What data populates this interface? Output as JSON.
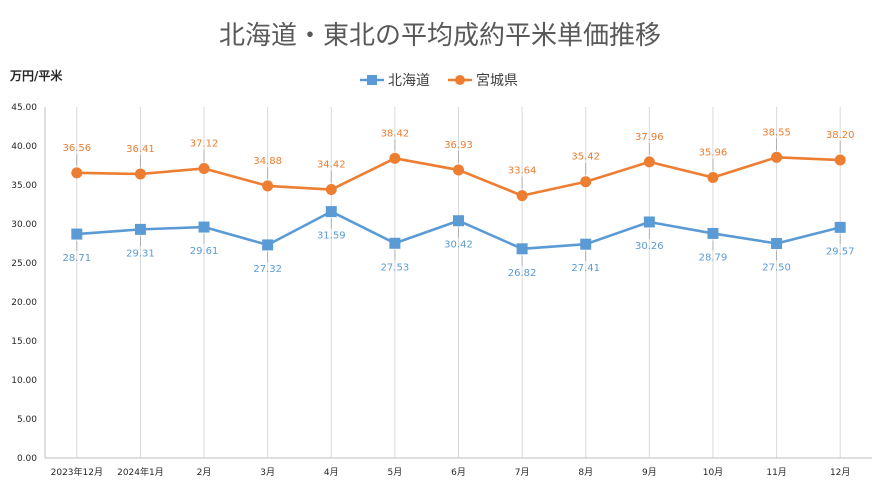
{
  "chart_data": {
    "type": "line",
    "title": "北海道・東北の平均成約平米単価推移",
    "ylabel": "万円/平米",
    "xlabel": "",
    "categories": [
      "2023年12月",
      "2024年1月",
      "2月",
      "3月",
      "4月",
      "5月",
      "6月",
      "7月",
      "8月",
      "9月",
      "10月",
      "11月",
      "12月"
    ],
    "ylim": [
      0,
      45
    ],
    "ystep": 5,
    "grid": "vertical",
    "legend_position": "top",
    "series": [
      {
        "name": "北海道",
        "color": "#5b9bd5",
        "marker": "square",
        "label_position": "below",
        "values": [
          28.71,
          29.31,
          29.61,
          27.32,
          31.59,
          27.53,
          30.42,
          26.82,
          27.41,
          30.26,
          28.79,
          27.5,
          29.57
        ]
      },
      {
        "name": "宮城県",
        "color": "#ed7d31",
        "marker": "circle",
        "label_position": "above",
        "values": [
          36.56,
          36.41,
          37.12,
          34.88,
          34.42,
          38.42,
          36.93,
          33.64,
          35.42,
          37.96,
          35.96,
          38.55,
          38.2
        ]
      }
    ]
  }
}
